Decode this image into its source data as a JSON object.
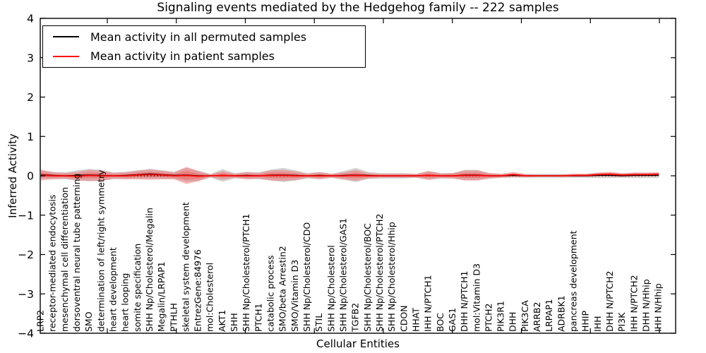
{
  "title": "Signaling events mediated by the Hedgehog family -- 222 samples",
  "legend": {
    "items": [
      {
        "label": "Mean activity in all permuted samples",
        "color": "#000000"
      },
      {
        "label": "Mean activity in patient samples",
        "color": "#ff0000"
      }
    ]
  },
  "chart_data": {
    "type": "line",
    "title": "Signaling events mediated by the Hedgehog family -- 222 samples",
    "xlabel": "Cellular Entities",
    "ylabel": "Inferred Activity",
    "ylim": [
      -4,
      4
    ],
    "ytick_labels": [
      "4",
      "3",
      "2",
      "1",
      "0",
      "−1",
      "−2",
      "−3",
      "−4"
    ],
    "ytick_values": [
      4,
      3,
      2,
      1,
      0,
      -1,
      -2,
      -3,
      -4
    ],
    "grid": false,
    "legend_position": "upper left",
    "zero_reference_line": 0,
    "categories": [
      "LRP2",
      "receptor-mediated endocytosis",
      "mesenchymal cell differentiation",
      "dorsoventral neural tube patterning",
      "SMO",
      "determination of left/right symmetry",
      "heart development",
      "heart looping",
      "somite specification",
      "SHH Np/Cholesterol/Megalin",
      "Megalin/LRPAP1",
      "PTHLH",
      "skeletal system development",
      "EntrezGene:84976",
      "mol:Cholesterol",
      "AKT1",
      "SHH",
      "SHH Np/Cholesterol/PTCH1",
      "PTCH1",
      "catabolic process",
      "SMO/beta Arrestin2",
      "SMO/Vitamin D3",
      "SHH Np/Cholesterol/CDO",
      "STIL",
      "SHH Np/Cholesterol",
      "SHH Np/Cholesterol/GAS1",
      "TGFB2",
      "SHH Np/Cholesterol/BOC",
      "SHH Np/Cholesterol/PTCH2",
      "SHH Np/Cholesterol/Hhip",
      "CDON",
      "HHAT",
      "IHH N/PTCH1",
      "BOC",
      "GAS1",
      "DHH N/PTCH1",
      "mol:Vitamin D3",
      "PTCH2",
      "PIK3R1",
      "DHH",
      "PIK3CA",
      "ARRB2",
      "LRPAP1",
      "ADRBK1",
      "pancreas development",
      "HHIP",
      "IHH",
      "DHH N/PTCH2",
      "PI3K",
      "IHH N/PTCH2",
      "DHH N/Hhip",
      "IHH N/Hhip"
    ],
    "series": [
      {
        "name": "Mean activity in all permuted samples",
        "kind": "line",
        "color": "#000000",
        "values": [
          0.03,
          0.01,
          0,
          0.01,
          0.02,
          0.01,
          0,
          0.01,
          0.03,
          0.05,
          0.03,
          0.01,
          0.02,
          0,
          0,
          0.01,
          0,
          0.01,
          0,
          0.02,
          0.02,
          0.01,
          0,
          0.01,
          0,
          0.01,
          0.02,
          0.01,
          0,
          0,
          0,
          0,
          0.01,
          0,
          0,
          0.02,
          0.02,
          0,
          0,
          0.01,
          0,
          0,
          0,
          0,
          0,
          0,
          0.01,
          0.01,
          0,
          0.01,
          0.01,
          0.01
        ]
      },
      {
        "name": "Mean activity in patient samples",
        "kind": "line",
        "color": "#ff0000",
        "values": [
          0.02,
          0,
          0,
          -0.01,
          0.01,
          0,
          0,
          0,
          0.02,
          0.03,
          0.02,
          0,
          0.01,
          -0.01,
          0,
          0.01,
          0,
          0,
          0,
          0.01,
          0.01,
          0,
          0,
          0,
          0,
          0,
          0.01,
          0,
          0,
          0,
          0,
          0,
          0.01,
          0,
          0,
          0.01,
          0.01,
          0,
          0,
          0.03,
          0,
          0,
          0,
          0,
          0.01,
          0.01,
          0.03,
          0.04,
          0.02,
          0.03,
          0.03,
          0.04
        ]
      },
      {
        "name": "Permuted samples spread (half-width)",
        "kind": "band",
        "color": "#cfcfcf",
        "values": [
          0.11,
          0.09,
          0.09,
          0.13,
          0.16,
          0.14,
          0.09,
          0.09,
          0.11,
          0.13,
          0.11,
          0.09,
          0.18,
          0.13,
          0.05,
          0.16,
          0.07,
          0.09,
          0.09,
          0.14,
          0.18,
          0.13,
          0.07,
          0.09,
          0.05,
          0.11,
          0.18,
          0.09,
          0.07,
          0.07,
          0.07,
          0.05,
          0.11,
          0.07,
          0.07,
          0.13,
          0.13,
          0.07,
          0.05,
          0.05,
          0.05,
          0.05,
          0.05,
          0.05,
          0.05,
          0.05,
          0.07,
          0.07,
          0.05,
          0.07,
          0.07,
          0.07
        ]
      },
      {
        "name": "Patient samples spread (half-width)",
        "kind": "band",
        "color": "#ff4040",
        "values": [
          0.14,
          0.09,
          0.07,
          0.11,
          0.14,
          0.13,
          0.07,
          0.09,
          0.11,
          0.13,
          0.11,
          0.09,
          0.22,
          0.13,
          0.03,
          0.11,
          0.05,
          0.09,
          0.07,
          0.13,
          0.14,
          0.11,
          0.05,
          0.09,
          0.05,
          0.09,
          0.14,
          0.07,
          0.05,
          0.05,
          0.05,
          0.05,
          0.11,
          0.06,
          0.07,
          0.13,
          0.13,
          0.07,
          0.05,
          0.07,
          0.04,
          0.03,
          0.03,
          0.03,
          0.04,
          0.04,
          0.05,
          0.06,
          0.05,
          0.05,
          0.05,
          0.05
        ]
      }
    ]
  }
}
